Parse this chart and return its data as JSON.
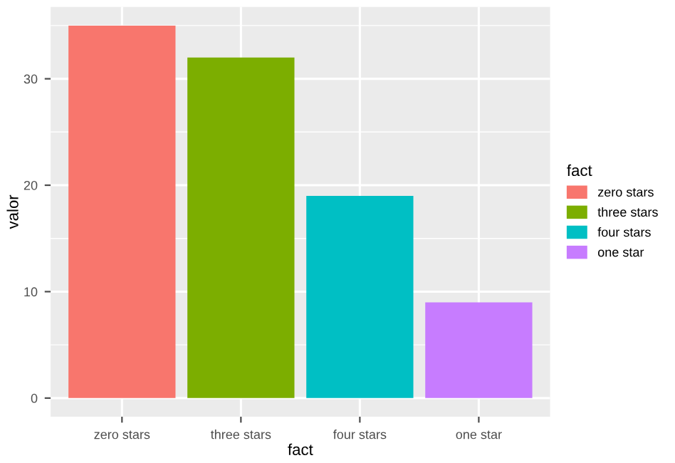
{
  "chart_data": {
    "type": "bar",
    "xlabel": "fact",
    "ylabel": "valor",
    "legend_title": "fact",
    "categories": [
      "zero stars",
      "three stars",
      "four stars",
      "one star"
    ],
    "series": [
      {
        "name": "zero stars",
        "color": "#f8766d",
        "values": [
          35,
          null,
          null,
          null
        ]
      },
      {
        "name": "three stars",
        "color": "#7cae00",
        "values": [
          null,
          32,
          null,
          null
        ]
      },
      {
        "name": "four stars",
        "color": "#00bfc4",
        "values": [
          null,
          null,
          19,
          null
        ]
      },
      {
        "name": "one star",
        "color": "#c77cff",
        "values": [
          null,
          null,
          null,
          9
        ]
      }
    ],
    "ylim": [
      -1.75,
      36.75
    ],
    "yticks": [
      0,
      10,
      20,
      30
    ],
    "grid": true,
    "legend": "right"
  }
}
